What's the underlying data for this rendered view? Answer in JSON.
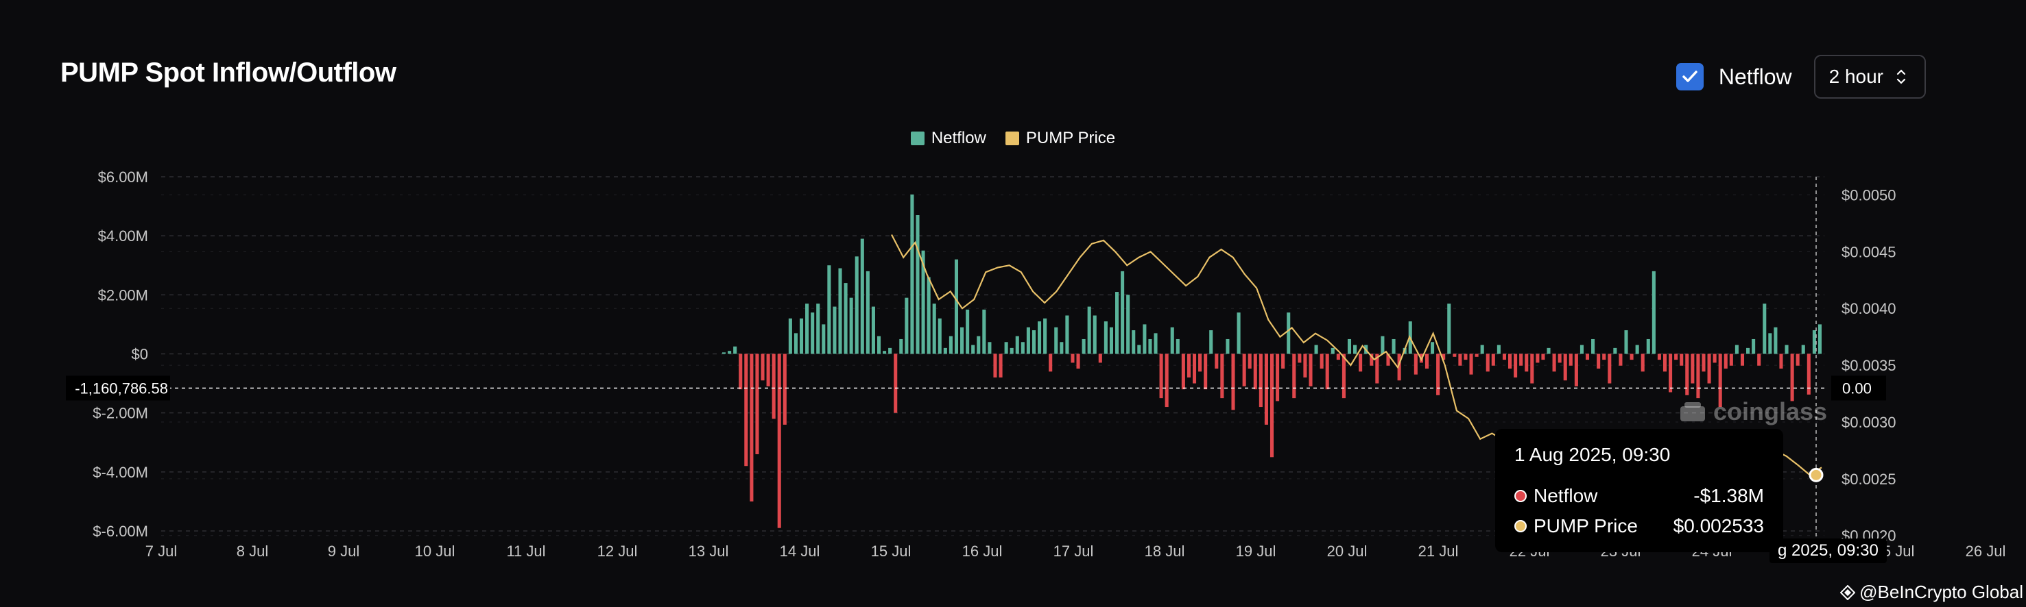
{
  "header": {
    "title": "PUMP Spot Inflow/Outflow",
    "checkbox_label": "Netflow",
    "checkbox_checked": true,
    "interval_value": "2 hour"
  },
  "colors": {
    "positive": "#5ab39a",
    "negative": "#e0474c",
    "price_line": "#e9c168",
    "accent": "#2f6fdb"
  },
  "chart_data": {
    "type": "bar",
    "legend": [
      {
        "name": "Netflow",
        "color": "#5ab39a"
      },
      {
        "name": "PUMP Price",
        "color": "#e9c168"
      }
    ],
    "legend_position": "top-center",
    "x_tick_labels": [
      "7 Jul",
      "8 Jul",
      "9 Jul",
      "10 Jul",
      "11 Jul",
      "12 Jul",
      "13 Jul",
      "14 Jul",
      "15 Jul",
      "16 Jul",
      "17 Jul",
      "18 Jul",
      "19 Jul",
      "20 Jul",
      "21 Jul",
      "22 Jul",
      "23 Jul",
      "24 Jul",
      "25 Jul",
      "25 Jul",
      "26 Jul",
      "2"
    ],
    "y_left": {
      "ticks": [
        "$6.00M",
        "$4.00M",
        "$2.00M",
        "$0",
        "$-2.00M",
        "$-4.00M",
        "$-6.00M"
      ],
      "tick_values": [
        6,
        4,
        2,
        0,
        -2,
        -4,
        -6
      ],
      "range": [
        -6,
        6
      ],
      "unit": "$M"
    },
    "y_right": {
      "ticks": [
        "$0.0050",
        "$0.0045",
        "$0.0040",
        "$0.0035",
        "$0.0030",
        "$0.0025",
        "$0.0020"
      ],
      "tick_values": [
        0.005,
        0.0045,
        0.004,
        0.0035,
        0.003,
        0.0025,
        0.002
      ],
      "range": [
        0.00195,
        0.00516
      ]
    },
    "grid": true,
    "crosshair": {
      "left_value": "-1,160,786.58",
      "right_value": "0.00",
      "left_numeric_m": -1.16,
      "x_label": "1 Aug 2025, 09:30",
      "x_label_shown": "g 2025, 09:30"
    },
    "netflow_series": {
      "name": "Netflow",
      "unit": "$M",
      "start": "15 Jul",
      "step_days": 0.0833,
      "values": [
        0.05,
        0.1,
        0.25,
        -1.2,
        -3.8,
        -5.0,
        -3.4,
        -0.9,
        -1.1,
        -2.2,
        -5.9,
        -2.4,
        1.2,
        0.7,
        1.2,
        1.7,
        1.4,
        1.7,
        1.0,
        3.0,
        1.6,
        2.9,
        2.4,
        1.9,
        3.3,
        3.9,
        2.8,
        1.6,
        0.6,
        0.1,
        0.2,
        -2.0,
        0.5,
        1.9,
        5.4,
        4.7,
        3.5,
        2.6,
        1.7,
        1.2,
        0.2,
        0.6,
        3.2,
        0.9,
        1.5,
        0.3,
        0.6,
        1.5,
        0.4,
        -0.8,
        -0.8,
        0.4,
        0.2,
        0.6,
        0.4,
        0.9,
        0.8,
        1.1,
        1.2,
        -0.6,
        0.9,
        0.4,
        1.3,
        -0.3,
        -0.5,
        0.5,
        1.6,
        1.3,
        -0.3,
        1.1,
        0.9,
        2.1,
        2.8,
        2.0,
        0.8,
        0.3,
        1.0,
        0.5,
        0.7,
        -1.5,
        -1.8,
        0.9,
        0.5,
        -1.2,
        -0.8,
        -1.0,
        -0.6,
        -1.2,
        0.8,
        -0.5,
        -1.5,
        0.5,
        -1.9,
        1.4,
        -1.1,
        -0.5,
        -1.2,
        -1.8,
        -2.4,
        -3.5,
        -1.6,
        -0.5,
        1.4,
        -1.5,
        -0.3,
        -0.8,
        -1.1,
        0.3,
        -0.5,
        -1.2,
        0.2,
        -0.2,
        -1.5,
        0.5,
        0.3,
        -0.6,
        0.3,
        -0.4,
        -1.0,
        0.6,
        -0.4,
        0.5,
        -0.9,
        0.2,
        1.1,
        -0.7,
        -0.3,
        -0.5,
        0.4,
        -1.4,
        -0.2,
        1.7,
        -0.1,
        -0.4,
        -0.2,
        -0.7,
        -0.1,
        0.3,
        -0.6,
        -0.4,
        0.3,
        -0.2,
        -0.5,
        -0.8,
        -0.4,
        -0.6,
        -1.0,
        -0.3,
        -0.2,
        0.2,
        -0.6,
        -0.3,
        -0.9,
        -0.4,
        -1.1,
        0.3,
        -0.2,
        0.5,
        -0.5,
        -0.2,
        -1.0,
        0.2,
        -0.4,
        0.8,
        -0.2,
        0.3,
        -0.6,
        0.5,
        2.8,
        -0.2,
        -0.6,
        -1.3,
        -0.2,
        -0.4,
        -1.4,
        -1.0,
        -1.5,
        -0.6,
        -1.0,
        -0.3,
        -1.8,
        -0.5,
        -0.4,
        0.3,
        -0.4,
        0.2,
        0.5,
        -0.4,
        1.7,
        0.7,
        0.9,
        -0.5,
        0.3,
        -1.6,
        -0.4,
        0.3,
        -1.38,
        0.8,
        1.0
      ]
    },
    "price_series": {
      "name": "PUMP Price",
      "start": "18 Jul",
      "values": [
        0.00465,
        0.00445,
        0.00458,
        0.0043,
        0.00408,
        0.00415,
        0.004,
        0.00408,
        0.00432,
        0.00436,
        0.00438,
        0.00432,
        0.00415,
        0.00405,
        0.00415,
        0.0043,
        0.00445,
        0.00457,
        0.0046,
        0.0045,
        0.00438,
        0.00445,
        0.0045,
        0.0044,
        0.0043,
        0.0042,
        0.00428,
        0.00445,
        0.00452,
        0.00445,
        0.0043,
        0.00418,
        0.0039,
        0.00375,
        0.00383,
        0.0037,
        0.00378,
        0.00372,
        0.00362,
        0.0035,
        0.00367,
        0.00355,
        0.00362,
        0.00348,
        0.00375,
        0.00355,
        0.00378,
        0.0035,
        0.0031,
        0.00303,
        0.00285,
        0.0029,
        0.00284,
        0.00275,
        0.00268,
        0.0026,
        0.00255,
        0.00265,
        0.00258,
        0.00262,
        0.00267,
        0.0026,
        0.00266,
        0.0026,
        0.00275,
        0.00262,
        0.00286,
        0.0028,
        0.00285,
        0.00278,
        0.00282,
        0.00275,
        0.0027
      ],
      "end_start_index": 0,
      "tail": [
        0.0029,
        0.00282,
        0.00275,
        0.0027,
        0.00262,
        0.002533,
        0.0026
      ]
    }
  },
  "tooltip": {
    "title": "1 Aug 2025, 09:30",
    "rows": [
      {
        "name": "Netflow",
        "value": "-$1.38M",
        "dot": "#e0474c"
      },
      {
        "name": "PUMP Price",
        "value": "$0.002533",
        "dot": "#e9c168"
      }
    ]
  },
  "watermark": "coinglass",
  "credit": "@BeInCrypto Global"
}
